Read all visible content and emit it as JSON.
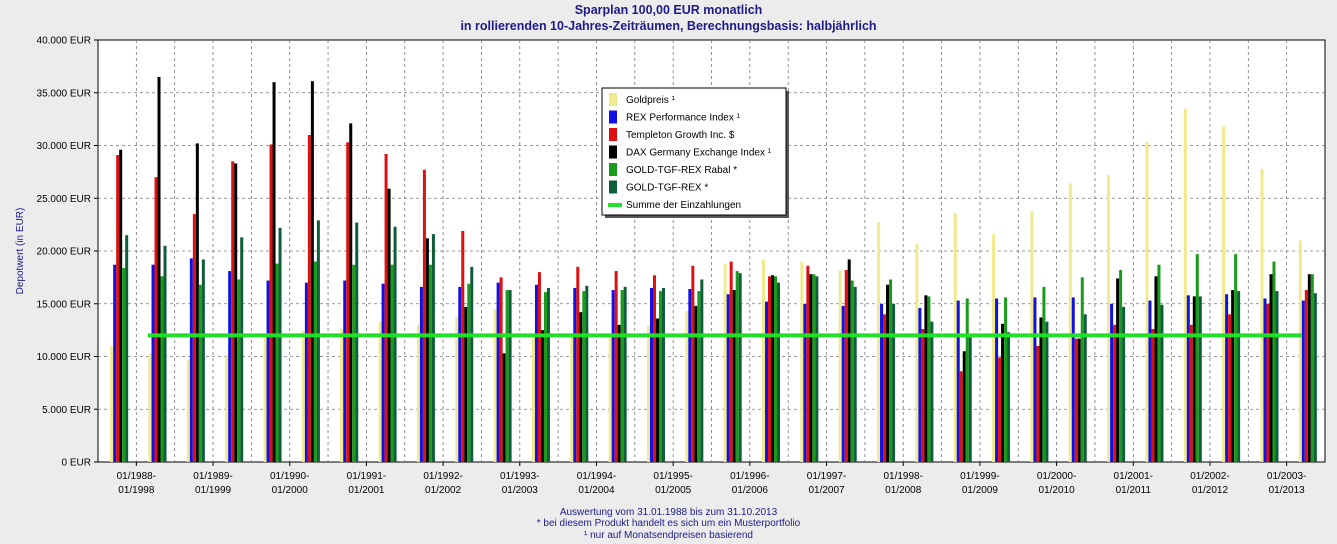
{
  "chart_data": {
    "type": "bar",
    "title": "Sparplan 100,00 EUR monatlich",
    "subtitle": "in rollierenden 10-Jahres-Zeiträumen, Berechnungsbasis: halbjährlich",
    "ylabel": "Depotwert (in EUR)",
    "ylim": [
      0,
      40000
    ],
    "yticks": [
      "0 EUR",
      "5.000 EUR",
      "10.000 EUR",
      "15.000 EUR",
      "20.000 EUR",
      "25.000 EUR",
      "30.000 EUR",
      "35.000 EUR",
      "40.000 EUR"
    ],
    "grid": true,
    "legend_position": "top-center",
    "x_labels": [
      [
        "01/1988-",
        "01/1998"
      ],
      [
        "01/1989-",
        "01/1999"
      ],
      [
        "01/1990-",
        "01/2000"
      ],
      [
        "01/1991-",
        "01/2001"
      ],
      [
        "01/1992-",
        "01/2002"
      ],
      [
        "01/1993-",
        "01/2003"
      ],
      [
        "01/1994-",
        "01/2004"
      ],
      [
        "01/1995-",
        "01/2005"
      ],
      [
        "01/1996-",
        "01/2006"
      ],
      [
        "01/1997-",
        "01/2007"
      ],
      [
        "01/1998-",
        "01/2008"
      ],
      [
        "01/1999-",
        "01/2009"
      ],
      [
        "01/2000-",
        "01/2010"
      ],
      [
        "01/2001-",
        "01/2011"
      ],
      [
        "01/2002-",
        "01/2012"
      ],
      [
        "01/2003-",
        "01/2013"
      ]
    ],
    "series": [
      {
        "name": "Goldpreis ¹",
        "color": "#f0ea8c",
        "values": [
          11000,
          10300,
          9700,
          10200,
          12100,
          12400,
          12600,
          13300,
          13000,
          13800,
          14500,
          11900,
          12200,
          11800,
          12900,
          14300,
          18800,
          19200,
          19000,
          18200,
          22700,
          20700,
          23600,
          21600,
          23800,
          26400,
          27200,
          30300,
          33500,
          31800,
          27800,
          21000
        ]
      },
      {
        "name": "REX Performance Index ¹",
        "color": "#1010e8",
        "values": [
          18700,
          18700,
          19300,
          18100,
          17200,
          17000,
          17200,
          16900,
          16600,
          16600,
          17000,
          16800,
          16500,
          16300,
          16500,
          16400,
          15900,
          15200,
          15000,
          14800,
          15000,
          14600,
          15300,
          15500,
          15600,
          15600,
          15000,
          15300,
          15800,
          15900,
          15500,
          15300
        ]
      },
      {
        "name": "Templeton Growth Inc. $",
        "color": "#e01010",
        "values": [
          29100,
          27000,
          23500,
          28500,
          30100,
          31000,
          30300,
          29200,
          27700,
          21900,
          17500,
          18000,
          18500,
          18100,
          17700,
          18600,
          19000,
          17600,
          18600,
          18200,
          14000,
          12600,
          8600,
          9900,
          11000,
          11700,
          13000,
          12600,
          13000,
          14000,
          15000,
          16300
        ]
      },
      {
        "name": "DAX Germany Exchange Index ¹",
        "color": "#000000",
        "values": [
          29600,
          36500,
          30200,
          28300,
          36000,
          36100,
          32100,
          25900,
          21200,
          14700,
          10300,
          12500,
          14200,
          13000,
          13600,
          14800,
          16300,
          17700,
          17800,
          19200,
          16800,
          15800,
          10500,
          13100,
          13700,
          11700,
          17400,
          17600,
          15700,
          16300,
          17800,
          17800
        ]
      },
      {
        "name": "GOLD-TGF-REX Rabal *",
        "color": "#1a9a1a",
        "values": [
          18400,
          17600,
          16800,
          17300,
          18800,
          19000,
          18700,
          18700,
          18700,
          16900,
          16300,
          16100,
          16200,
          16300,
          16200,
          16200,
          18100,
          17600,
          17800,
          17200,
          17300,
          15700,
          15500,
          15600,
          16600,
          17500,
          18200,
          18700,
          19700,
          19700,
          19000,
          17800
        ]
      },
      {
        "name": "GOLD-TGF-REX *",
        "color": "#0f5e3a",
        "values": [
          21500,
          20500,
          19200,
          21300,
          22200,
          22900,
          22700,
          22300,
          21600,
          18500,
          16300,
          16500,
          16700,
          16600,
          16500,
          17300,
          17900,
          17000,
          17600,
          16600,
          15000,
          13300,
          11800,
          12300,
          13300,
          14000,
          14700,
          14900,
          15700,
          16200,
          16200,
          16000
        ]
      },
      {
        "name": "Summe der Einzahlungen",
        "color": "#22e02a",
        "type": "line",
        "values": [
          12000,
          12000
        ]
      }
    ]
  },
  "footer": {
    "line1": "Auswertung vom 31.01.1988 bis zum 31.10.2013",
    "line2": "* bei diesem Produkt handelt es sich um ein Musterportfolio",
    "line3": "¹ nur auf Monatsendpreisen basierend"
  }
}
